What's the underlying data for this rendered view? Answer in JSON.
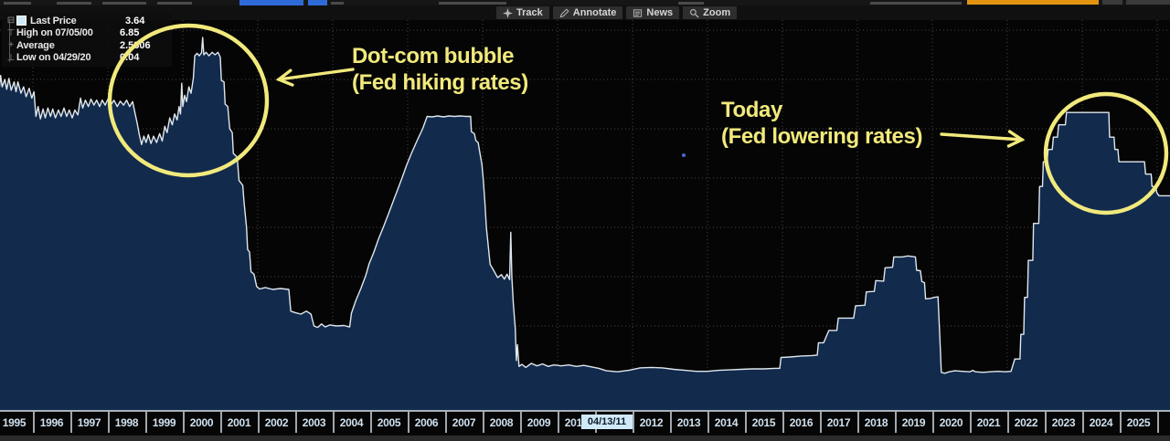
{
  "toolbar": {
    "buttons": [
      {
        "id": "track",
        "label": "Track"
      },
      {
        "id": "annotate",
        "label": "Annotate"
      },
      {
        "id": "news",
        "label": "News"
      },
      {
        "id": "zoom",
        "label": "Zoom"
      }
    ]
  },
  "legend": {
    "rows": [
      {
        "id": "last",
        "label": "Last Price",
        "value": "3.64",
        "swatch": true
      },
      {
        "id": "high",
        "label": "High on 07/05/00",
        "value": "6.85"
      },
      {
        "id": "avg",
        "label": "Average",
        "value": "2.5306"
      },
      {
        "id": "low",
        "label": "Low on 04/29/20",
        "value": "0.04"
      }
    ]
  },
  "annotations": {
    "dotcom": {
      "line1": "Dot-com bubble",
      "line2": "(Fed hiking rates)"
    },
    "today": {
      "line1": "Today",
      "line2": "(Fed lowering rates)"
    }
  },
  "axis": {
    "years": [
      "1995",
      "1996",
      "1997",
      "1998",
      "1999",
      "2000",
      "2001",
      "2002",
      "2003",
      "2004",
      "2005",
      "2006",
      "2007",
      "2008",
      "2009",
      "2010",
      "2011",
      "2012",
      "2013",
      "2014",
      "2015",
      "2016",
      "2017",
      "2018",
      "2019",
      "2020",
      "2021",
      "2022",
      "2023",
      "2024",
      "2025"
    ],
    "crosshair_date": "04/13/11"
  },
  "colors": {
    "accent_yellow": "#f1e97c",
    "line": "#dfe7ee",
    "area_fill": "#122a4c",
    "grid": "#454545",
    "axis_label": "#cfe0ee",
    "crosshair_bg": "#cfe9f8",
    "swatch": "#cfe9f6",
    "amber": "#e2930f",
    "blue_button": "#2f6bd8",
    "cursor_dot": "#4468cc"
  },
  "chart_data": {
    "type": "area",
    "title": "",
    "xlabel": "",
    "ylabel": "",
    "x_range": [
      1995,
      2026.4
    ],
    "ylim": [
      0,
      7.5
    ],
    "gridline_step_pct": 1,
    "x_gridline_step_years": 2,
    "series_name": "Last Price",
    "stats": {
      "last": 3.64,
      "high": 6.85,
      "high_date": "07/05/00",
      "average": 2.5306,
      "low": 0.04,
      "low_date": "04/29/20"
    },
    "points": [
      [
        1994.9,
        5.6
      ],
      [
        1995.0,
        5.55
      ],
      [
        1995.05,
        6.05
      ],
      [
        1995.1,
        5.8
      ],
      [
        1995.14,
        6.08
      ],
      [
        1995.18,
        5.85
      ],
      [
        1995.25,
        6.0
      ],
      [
        1995.3,
        5.8
      ],
      [
        1995.36,
        6.02
      ],
      [
        1995.42,
        5.78
      ],
      [
        1995.5,
        5.95
      ],
      [
        1995.55,
        5.75
      ],
      [
        1995.6,
        5.95
      ],
      [
        1995.68,
        5.72
      ],
      [
        1995.75,
        5.85
      ],
      [
        1995.82,
        5.65
      ],
      [
        1995.9,
        5.82
      ],
      [
        1995.97,
        5.62
      ],
      [
        1996.03,
        5.75
      ],
      [
        1996.08,
        5.25
      ],
      [
        1996.14,
        5.45
      ],
      [
        1996.2,
        5.2
      ],
      [
        1996.27,
        5.4
      ],
      [
        1996.33,
        5.22
      ],
      [
        1996.4,
        5.42
      ],
      [
        1996.47,
        5.25
      ],
      [
        1996.53,
        5.4
      ],
      [
        1996.6,
        5.22
      ],
      [
        1996.68,
        5.38
      ],
      [
        1996.75,
        5.25
      ],
      [
        1996.83,
        5.42
      ],
      [
        1996.9,
        5.25
      ],
      [
        1996.97,
        5.38
      ],
      [
        1997.05,
        5.22
      ],
      [
        1997.12,
        5.38
      ],
      [
        1997.2,
        5.28
      ],
      [
        1997.27,
        5.62
      ],
      [
        1997.33,
        5.42
      ],
      [
        1997.4,
        5.58
      ],
      [
        1997.48,
        5.45
      ],
      [
        1997.55,
        5.6
      ],
      [
        1997.63,
        5.48
      ],
      [
        1997.7,
        5.58
      ],
      [
        1997.78,
        5.45
      ],
      [
        1997.85,
        5.58
      ],
      [
        1997.93,
        5.48
      ],
      [
        1998.0,
        5.6
      ],
      [
        1998.08,
        5.48
      ],
      [
        1998.16,
        5.58
      ],
      [
        1998.25,
        5.45
      ],
      [
        1998.33,
        5.56
      ],
      [
        1998.42,
        5.48
      ],
      [
        1998.5,
        5.58
      ],
      [
        1998.58,
        5.45
      ],
      [
        1998.66,
        5.55
      ],
      [
        1998.73,
        5.3
      ],
      [
        1998.78,
        5.12
      ],
      [
        1998.84,
        4.88
      ],
      [
        1998.9,
        4.68
      ],
      [
        1998.96,
        4.85
      ],
      [
        1999.02,
        4.72
      ],
      [
        1999.08,
        4.88
      ],
      [
        1999.15,
        4.7
      ],
      [
        1999.22,
        4.85
      ],
      [
        1999.3,
        4.72
      ],
      [
        1999.38,
        4.9
      ],
      [
        1999.45,
        4.75
      ],
      [
        1999.52,
        5.05
      ],
      [
        1999.58,
        4.92
      ],
      [
        1999.65,
        5.22
      ],
      [
        1999.72,
        5.08
      ],
      [
        1999.78,
        5.3
      ],
      [
        1999.85,
        5.18
      ],
      [
        1999.9,
        5.45
      ],
      [
        1999.94,
        5.3
      ],
      [
        1999.97,
        5.92
      ],
      [
        2000.0,
        5.45
      ],
      [
        2000.05,
        5.68
      ],
      [
        2000.1,
        5.55
      ],
      [
        2000.16,
        5.85
      ],
      [
        2000.22,
        5.72
      ],
      [
        2000.28,
        6.02
      ],
      [
        2000.32,
        6.48
      ],
      [
        2000.38,
        6.53
      ],
      [
        2000.44,
        6.48
      ],
      [
        2000.5,
        6.54
      ],
      [
        2000.53,
        6.85
      ],
      [
        2000.56,
        6.5
      ],
      [
        2000.62,
        6.55
      ],
      [
        2000.7,
        6.48
      ],
      [
        2000.78,
        6.55
      ],
      [
        2000.86,
        6.5
      ],
      [
        2000.94,
        6.55
      ],
      [
        2001.0,
        6.45
      ],
      [
        2001.03,
        5.98
      ],
      [
        2001.1,
        5.95
      ],
      [
        2001.13,
        5.5
      ],
      [
        2001.2,
        5.45
      ],
      [
        2001.25,
        5.0
      ],
      [
        2001.32,
        4.92
      ],
      [
        2001.35,
        4.5
      ],
      [
        2001.45,
        4.42
      ],
      [
        2001.5,
        3.95
      ],
      [
        2001.6,
        3.85
      ],
      [
        2001.63,
        3.55
      ],
      [
        2001.7,
        3.0
      ],
      [
        2001.73,
        2.55
      ],
      [
        2001.78,
        2.5
      ],
      [
        2001.82,
        2.1
      ],
      [
        2001.9,
        2.05
      ],
      [
        2001.97,
        1.8
      ],
      [
        2002.05,
        1.75
      ],
      [
        2002.2,
        1.78
      ],
      [
        2002.4,
        1.74
      ],
      [
        2002.6,
        1.76
      ],
      [
        2002.83,
        1.74
      ],
      [
        2002.88,
        1.3
      ],
      [
        2003.0,
        1.27
      ],
      [
        2003.15,
        1.24
      ],
      [
        2003.3,
        1.3
      ],
      [
        2003.42,
        1.24
      ],
      [
        2003.5,
        1.0
      ],
      [
        2003.6,
        0.97
      ],
      [
        2003.7,
        1.04
      ],
      [
        2003.8,
        0.98
      ],
      [
        2003.92,
        1.02
      ],
      [
        2004.1,
        1.0
      ],
      [
        2004.3,
        1.01
      ],
      [
        2004.45,
        0.98
      ],
      [
        2004.5,
        1.26
      ],
      [
        2004.62,
        1.52
      ],
      [
        2004.75,
        1.76
      ],
      [
        2004.88,
        2.02
      ],
      [
        2004.97,
        2.26
      ],
      [
        2005.1,
        2.5
      ],
      [
        2005.22,
        2.76
      ],
      [
        2005.35,
        3.0
      ],
      [
        2005.48,
        3.26
      ],
      [
        2005.6,
        3.5
      ],
      [
        2005.73,
        3.76
      ],
      [
        2005.85,
        4.0
      ],
      [
        2005.97,
        4.26
      ],
      [
        2006.1,
        4.5
      ],
      [
        2006.25,
        4.76
      ],
      [
        2006.4,
        5.0
      ],
      [
        2006.52,
        5.25
      ],
      [
        2006.65,
        5.24
      ],
      [
        2006.8,
        5.26
      ],
      [
        2006.95,
        5.24
      ],
      [
        2007.1,
        5.26
      ],
      [
        2007.25,
        5.25
      ],
      [
        2007.4,
        5.26
      ],
      [
        2007.55,
        5.25
      ],
      [
        2007.68,
        5.25
      ],
      [
        2007.7,
        4.94
      ],
      [
        2007.78,
        4.9
      ],
      [
        2007.82,
        4.76
      ],
      [
        2007.88,
        4.72
      ],
      [
        2007.93,
        4.5
      ],
      [
        2007.98,
        4.28
      ],
      [
        2008.02,
        3.95
      ],
      [
        2008.06,
        3.5
      ],
      [
        2008.1,
        3.0
      ],
      [
        2008.2,
        2.25
      ],
      [
        2008.3,
        2.12
      ],
      [
        2008.4,
        1.98
      ],
      [
        2008.5,
        2.04
      ],
      [
        2008.58,
        1.95
      ],
      [
        2008.65,
        2.05
      ],
      [
        2008.72,
        1.94
      ],
      [
        2008.75,
        2.9
      ],
      [
        2008.78,
        1.98
      ],
      [
        2008.82,
        1.45
      ],
      [
        2008.87,
        0.95
      ],
      [
        2008.9,
        0.3
      ],
      [
        2008.93,
        0.62
      ],
      [
        2008.97,
        0.18
      ],
      [
        2009.05,
        0.22
      ],
      [
        2009.15,
        0.16
      ],
      [
        2009.3,
        0.24
      ],
      [
        2009.45,
        0.19
      ],
      [
        2009.6,
        0.23
      ],
      [
        2009.75,
        0.18
      ],
      [
        2009.9,
        0.21
      ],
      [
        2010.1,
        0.19
      ],
      [
        2010.3,
        0.21
      ],
      [
        2010.5,
        0.18
      ],
      [
        2010.7,
        0.2
      ],
      [
        2010.9,
        0.17
      ],
      [
        2011.1,
        0.14
      ],
      [
        2011.3,
        0.09
      ],
      [
        2011.6,
        0.07
      ],
      [
        2011.9,
        0.1
      ],
      [
        2012.2,
        0.15
      ],
      [
        2012.5,
        0.16
      ],
      [
        2012.8,
        0.15
      ],
      [
        2013.1,
        0.12
      ],
      [
        2013.4,
        0.1
      ],
      [
        2013.7,
        0.08
      ],
      [
        2014.0,
        0.08
      ],
      [
        2014.3,
        0.1
      ],
      [
        2014.6,
        0.11
      ],
      [
        2014.9,
        0.12
      ],
      [
        2015.2,
        0.13
      ],
      [
        2015.5,
        0.13
      ],
      [
        2015.8,
        0.14
      ],
      [
        2015.93,
        0.14
      ],
      [
        2015.96,
        0.36
      ],
      [
        2016.2,
        0.37
      ],
      [
        2016.5,
        0.39
      ],
      [
        2016.8,
        0.4
      ],
      [
        2016.93,
        0.41
      ],
      [
        2016.96,
        0.66
      ],
      [
        2017.1,
        0.66
      ],
      [
        2017.24,
        0.91
      ],
      [
        2017.45,
        0.91
      ],
      [
        2017.49,
        1.16
      ],
      [
        2017.9,
        1.16
      ],
      [
        2017.95,
        1.41
      ],
      [
        2018.2,
        1.42
      ],
      [
        2018.24,
        1.69
      ],
      [
        2018.45,
        1.7
      ],
      [
        2018.49,
        1.92
      ],
      [
        2018.7,
        1.91
      ],
      [
        2018.74,
        2.18
      ],
      [
        2018.94,
        2.19
      ],
      [
        2018.97,
        2.4
      ],
      [
        2019.2,
        2.4
      ],
      [
        2019.35,
        2.42
      ],
      [
        2019.55,
        2.4
      ],
      [
        2019.58,
        2.13
      ],
      [
        2019.68,
        2.12
      ],
      [
        2019.72,
        1.9
      ],
      [
        2019.79,
        1.88
      ],
      [
        2019.82,
        1.55
      ],
      [
        2019.95,
        1.56
      ],
      [
        2020.05,
        1.58
      ],
      [
        2020.15,
        1.59
      ],
      [
        2020.18,
        1.1
      ],
      [
        2020.21,
        0.6
      ],
      [
        2020.24,
        0.06
      ],
      [
        2020.33,
        0.04
      ],
      [
        2020.45,
        0.07
      ],
      [
        2020.6,
        0.09
      ],
      [
        2020.8,
        0.08
      ],
      [
        2021.0,
        0.07
      ],
      [
        2021.08,
        0.1
      ],
      [
        2021.15,
        0.07
      ],
      [
        2021.35,
        0.06
      ],
      [
        2021.55,
        0.07
      ],
      [
        2021.75,
        0.08
      ],
      [
        2021.95,
        0.07
      ],
      [
        2022.1,
        0.08
      ],
      [
        2022.2,
        0.33
      ],
      [
        2022.34,
        0.33
      ],
      [
        2022.36,
        0.83
      ],
      [
        2022.44,
        0.83
      ],
      [
        2022.46,
        1.58
      ],
      [
        2022.54,
        1.58
      ],
      [
        2022.56,
        2.33
      ],
      [
        2022.68,
        2.33
      ],
      [
        2022.7,
        3.08
      ],
      [
        2022.84,
        3.08
      ],
      [
        2022.86,
        3.83
      ],
      [
        2022.94,
        3.83
      ],
      [
        2022.96,
        4.33
      ],
      [
        2023.06,
        4.33
      ],
      [
        2023.09,
        4.58
      ],
      [
        2023.2,
        4.58
      ],
      [
        2023.23,
        4.83
      ],
      [
        2023.34,
        4.83
      ],
      [
        2023.37,
        5.08
      ],
      [
        2023.55,
        5.08
      ],
      [
        2023.58,
        5.33
      ],
      [
        2023.8,
        5.33
      ],
      [
        2024.1,
        5.33
      ],
      [
        2024.4,
        5.33
      ],
      [
        2024.71,
        5.33
      ],
      [
        2024.73,
        4.83
      ],
      [
        2024.85,
        4.83
      ],
      [
        2024.87,
        4.58
      ],
      [
        2024.95,
        4.58
      ],
      [
        2024.98,
        4.33
      ],
      [
        2025.3,
        4.33
      ],
      [
        2025.66,
        4.33
      ],
      [
        2025.69,
        4.08
      ],
      [
        2025.84,
        4.08
      ],
      [
        2025.86,
        3.83
      ],
      [
        2025.96,
        3.83
      ],
      [
        2025.99,
        3.7
      ],
      [
        2026.05,
        3.64
      ],
      [
        2026.4,
        3.64
      ]
    ]
  }
}
